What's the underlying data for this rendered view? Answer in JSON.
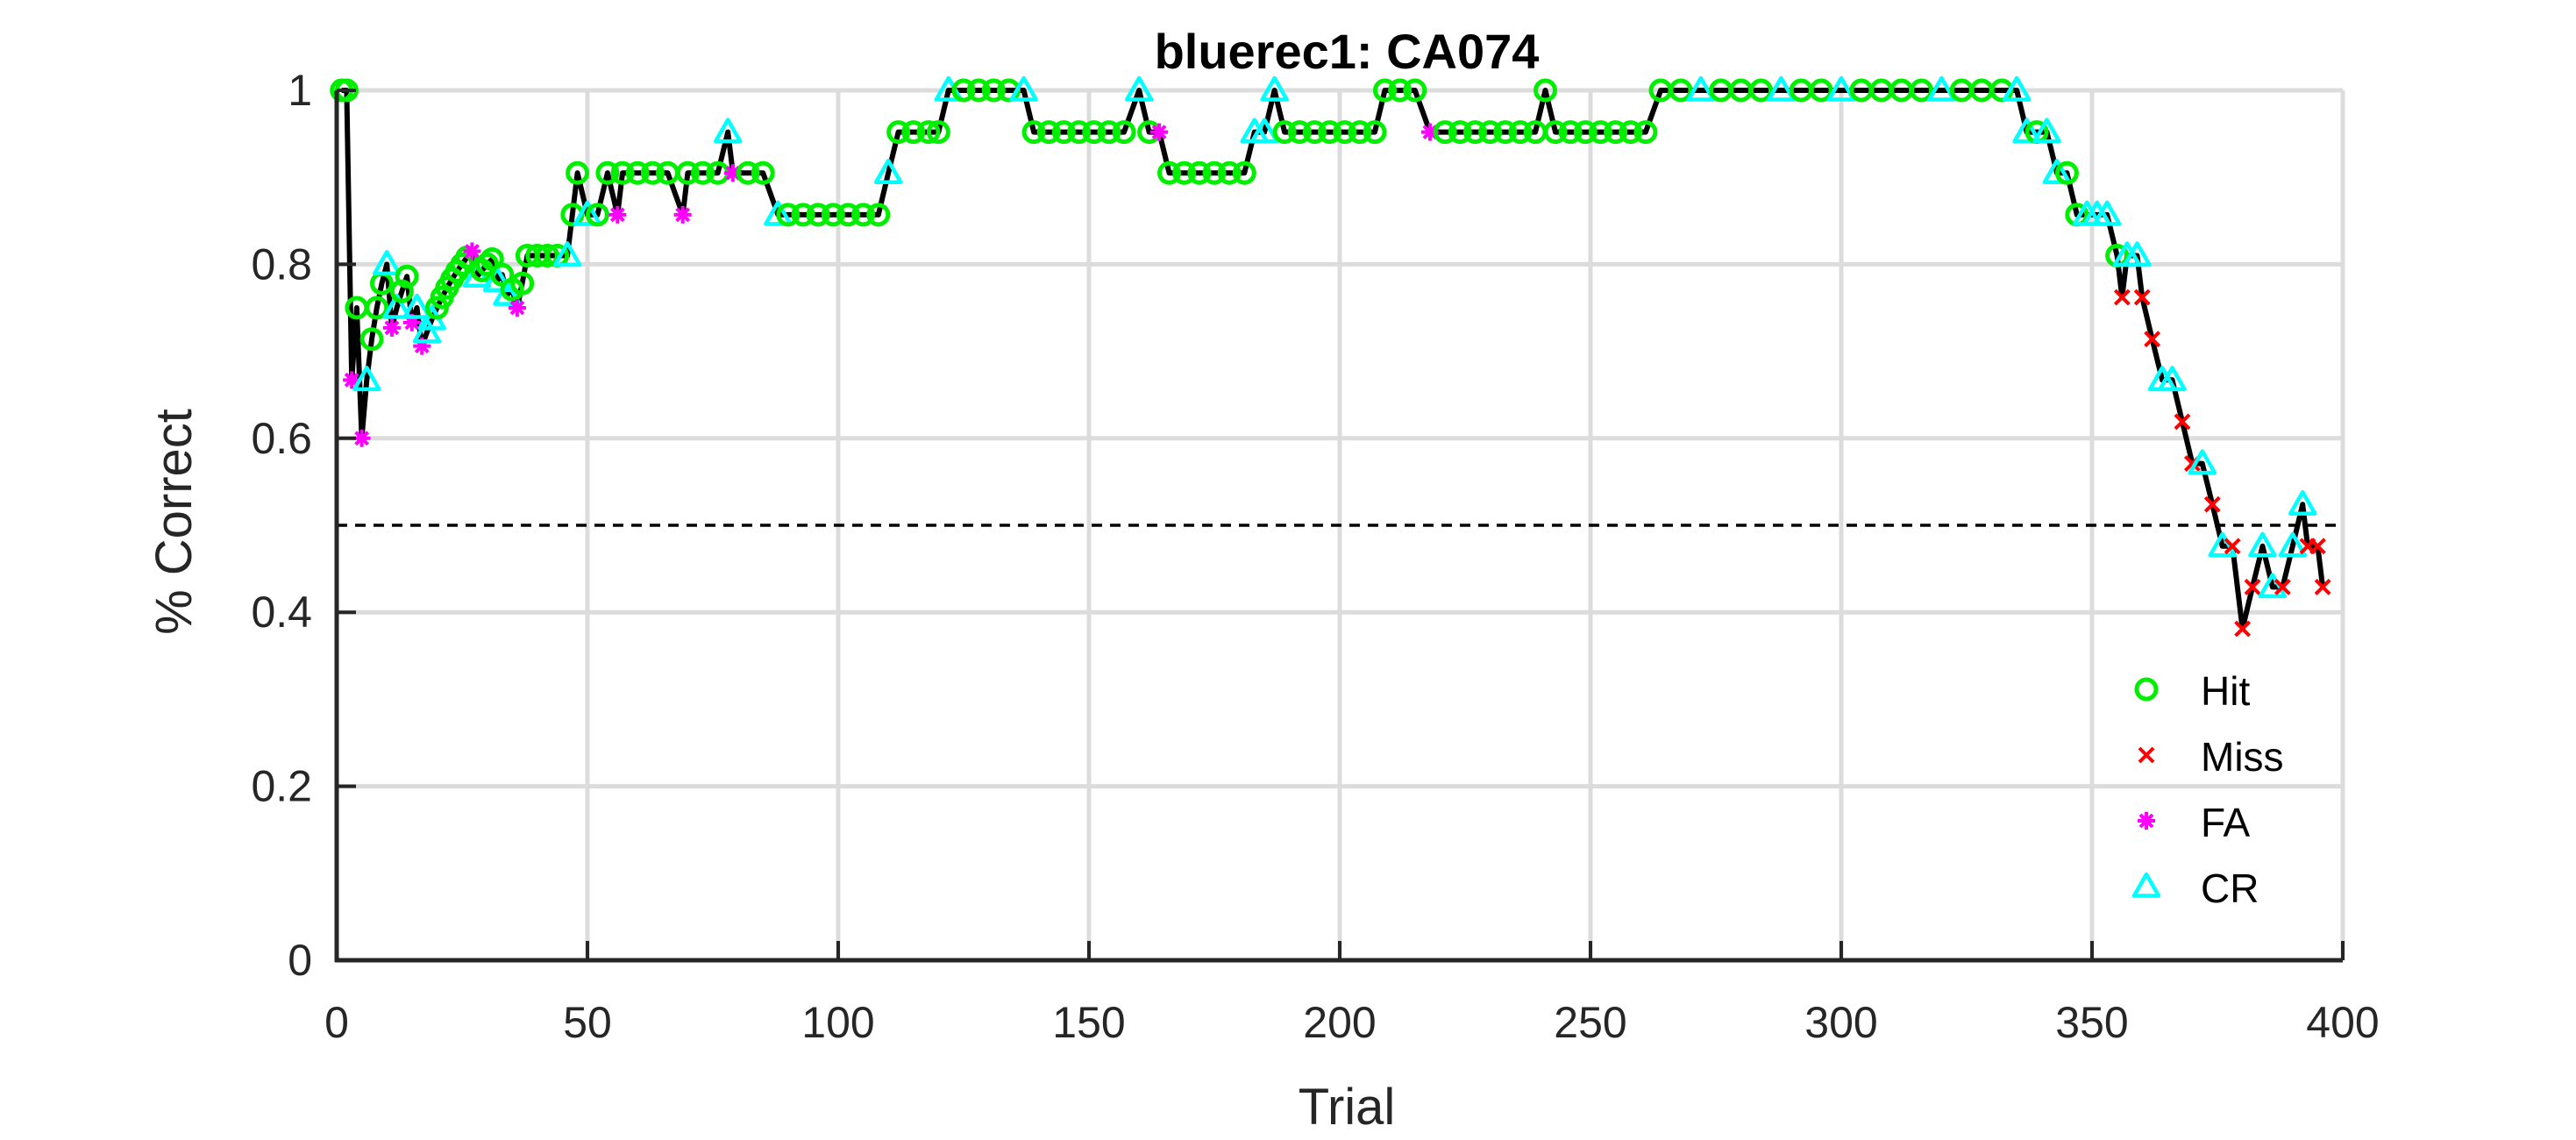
{
  "chart_data": {
    "type": "line",
    "title": "bluerec1: CA074",
    "xlabel": "Trial",
    "ylabel": "% Correct",
    "xlim": [
      0,
      400
    ],
    "ylim": [
      0,
      1
    ],
    "xticks": [
      0,
      50,
      100,
      150,
      200,
      250,
      300,
      350,
      400
    ],
    "xtick_labels": [
      "0",
      "50",
      "100",
      "150",
      "200",
      "250",
      "300",
      "350",
      "400"
    ],
    "yticks": [
      0,
      0.2,
      0.4,
      0.6,
      0.8,
      1
    ],
    "ytick_labels": [
      "0",
      "0.2",
      "0.4",
      "0.6",
      "0.8",
      "1"
    ],
    "grid": true,
    "legend_location": "bottom-right",
    "reference_line": {
      "y": 0.5,
      "style": "dashed"
    },
    "line_color": "#000000",
    "series": [
      {
        "name": "Hit",
        "marker": "circle",
        "color": "#00ee00"
      },
      {
        "name": "Miss",
        "marker": "x",
        "color": "#ff0000"
      },
      {
        "name": "FA",
        "marker": "asterisk",
        "color": "#ff00ff"
      },
      {
        "name": "CR",
        "marker": "triangle",
        "color": "#00ffff"
      }
    ],
    "trace": [
      [
        1,
        1.0,
        "H"
      ],
      [
        2,
        1.0,
        "H"
      ],
      [
        3,
        0.667,
        "F"
      ],
      [
        4,
        0.75,
        "H"
      ],
      [
        5,
        0.6,
        "F"
      ],
      [
        6,
        0.667,
        "C"
      ],
      [
        7,
        0.714,
        "H"
      ],
      [
        8,
        0.75,
        "H"
      ],
      [
        9,
        0.778,
        "H"
      ],
      [
        10,
        0.8,
        "C"
      ],
      [
        11,
        0.727,
        "F"
      ],
      [
        12,
        0.75,
        "C"
      ],
      [
        13,
        0.769,
        "H"
      ],
      [
        14,
        0.786,
        "H"
      ],
      [
        15,
        0.733,
        "F"
      ],
      [
        16,
        0.75,
        "C"
      ],
      [
        17,
        0.706,
        "F"
      ],
      [
        18,
        0.722,
        "C"
      ],
      [
        19,
        0.737,
        "C"
      ],
      [
        20,
        0.75,
        "H"
      ],
      [
        21,
        0.762,
        "H"
      ],
      [
        22,
        0.773,
        "H"
      ],
      [
        23,
        0.783,
        "H"
      ],
      [
        24,
        0.792,
        "H"
      ],
      [
        25,
        0.8,
        "H"
      ],
      [
        26,
        0.808,
        "H"
      ],
      [
        27,
        0.815,
        "F"
      ],
      [
        28,
        0.786,
        "C"
      ],
      [
        29,
        0.793,
        "H"
      ],
      [
        30,
        0.8,
        "H"
      ],
      [
        31,
        0.806,
        "H"
      ],
      [
        32,
        0.781,
        "C"
      ],
      [
        33,
        0.788,
        "H"
      ],
      [
        34,
        0.765,
        "C"
      ],
      [
        35,
        0.771,
        "H"
      ],
      [
        36,
        0.75,
        "F"
      ],
      [
        37,
        0.778,
        "H"
      ],
      [
        38,
        0.81,
        "H"
      ],
      [
        40,
        0.81,
        "H"
      ],
      [
        42,
        0.81,
        "H"
      ],
      [
        44,
        0.81,
        "H"
      ],
      [
        46,
        0.81,
        "C"
      ],
      [
        47,
        0.857,
        "H"
      ],
      [
        48,
        0.905,
        "H"
      ],
      [
        50,
        0.857,
        "C"
      ],
      [
        52,
        0.857,
        "H"
      ],
      [
        54,
        0.905,
        "H"
      ],
      [
        56,
        0.857,
        "F"
      ],
      [
        57,
        0.905,
        "H"
      ],
      [
        60,
        0.905,
        "H"
      ],
      [
        63,
        0.905,
        "H"
      ],
      [
        66,
        0.905,
        "H"
      ],
      [
        69,
        0.857,
        "F"
      ],
      [
        70,
        0.905,
        "H"
      ],
      [
        73,
        0.905,
        "H"
      ],
      [
        76,
        0.905,
        "H"
      ],
      [
        78,
        0.952,
        "C"
      ],
      [
        79,
        0.905,
        "F"
      ],
      [
        82,
        0.905,
        "H"
      ],
      [
        85,
        0.905,
        "H"
      ],
      [
        88,
        0.857,
        "C"
      ],
      [
        90,
        0.857,
        "H"
      ],
      [
        93,
        0.857,
        "H"
      ],
      [
        96,
        0.857,
        "H"
      ],
      [
        99,
        0.857,
        "H"
      ],
      [
        102,
        0.857,
        "H"
      ],
      [
        105,
        0.857,
        "H"
      ],
      [
        108,
        0.857,
        "H"
      ],
      [
        110,
        0.905,
        "C"
      ],
      [
        112,
        0.952,
        "H"
      ],
      [
        115,
        0.952,
        "H"
      ],
      [
        118,
        0.952,
        "H"
      ],
      [
        120,
        0.952,
        "H"
      ],
      [
        122,
        1.0,
        "C"
      ],
      [
        125,
        1.0,
        "H"
      ],
      [
        128,
        1.0,
        "H"
      ],
      [
        131,
        1.0,
        "H"
      ],
      [
        134,
        1.0,
        "H"
      ],
      [
        137,
        1.0,
        "C"
      ],
      [
        139,
        0.952,
        "H"
      ],
      [
        142,
        0.952,
        "H"
      ],
      [
        145,
        0.952,
        "H"
      ],
      [
        148,
        0.952,
        "H"
      ],
      [
        151,
        0.952,
        "H"
      ],
      [
        154,
        0.952,
        "H"
      ],
      [
        157,
        0.952,
        "H"
      ],
      [
        160,
        1.0,
        "C"
      ],
      [
        162,
        0.952,
        "H"
      ],
      [
        164,
        0.952,
        "F"
      ],
      [
        166,
        0.905,
        "H"
      ],
      [
        169,
        0.905,
        "H"
      ],
      [
        172,
        0.905,
        "H"
      ],
      [
        175,
        0.905,
        "H"
      ],
      [
        178,
        0.905,
        "H"
      ],
      [
        181,
        0.905,
        "H"
      ],
      [
        183,
        0.952,
        "C"
      ],
      [
        185,
        0.952,
        "C"
      ],
      [
        187,
        1.0,
        "C"
      ],
      [
        189,
        0.952,
        "H"
      ],
      [
        192,
        0.952,
        "H"
      ],
      [
        195,
        0.952,
        "H"
      ],
      [
        198,
        0.952,
        "H"
      ],
      [
        201,
        0.952,
        "H"
      ],
      [
        204,
        0.952,
        "H"
      ],
      [
        207,
        0.952,
        "H"
      ],
      [
        209,
        1.0,
        "H"
      ],
      [
        212,
        1.0,
        "H"
      ],
      [
        215,
        1.0,
        "H"
      ],
      [
        218,
        0.952,
        "F"
      ],
      [
        221,
        0.952,
        "H"
      ],
      [
        224,
        0.952,
        "H"
      ],
      [
        227,
        0.952,
        "H"
      ],
      [
        230,
        0.952,
        "H"
      ],
      [
        233,
        0.952,
        "H"
      ],
      [
        236,
        0.952,
        "H"
      ],
      [
        239,
        0.952,
        "H"
      ],
      [
        241,
        1.0,
        "H"
      ],
      [
        243,
        0.952,
        "H"
      ],
      [
        246,
        0.952,
        "H"
      ],
      [
        249,
        0.952,
        "H"
      ],
      [
        252,
        0.952,
        "H"
      ],
      [
        255,
        0.952,
        "H"
      ],
      [
        258,
        0.952,
        "H"
      ],
      [
        261,
        0.952,
        "H"
      ],
      [
        264,
        1.0,
        "H"
      ],
      [
        268,
        1.0,
        "H"
      ],
      [
        272,
        1.0,
        "C"
      ],
      [
        276,
        1.0,
        "H"
      ],
      [
        280,
        1.0,
        "H"
      ],
      [
        284,
        1.0,
        "H"
      ],
      [
        288,
        1.0,
        "C"
      ],
      [
        292,
        1.0,
        "H"
      ],
      [
        296,
        1.0,
        "H"
      ],
      [
        300,
        1.0,
        "C"
      ],
      [
        304,
        1.0,
        "H"
      ],
      [
        308,
        1.0,
        "H"
      ],
      [
        312,
        1.0,
        "H"
      ],
      [
        316,
        1.0,
        "H"
      ],
      [
        320,
        1.0,
        "C"
      ],
      [
        324,
        1.0,
        "H"
      ],
      [
        328,
        1.0,
        "H"
      ],
      [
        332,
        1.0,
        "H"
      ],
      [
        335,
        1.0,
        "C"
      ],
      [
        337,
        0.952,
        "C"
      ],
      [
        339,
        0.952,
        "H"
      ],
      [
        341,
        0.952,
        "C"
      ],
      [
        343,
        0.905,
        "C"
      ],
      [
        345,
        0.905,
        "H"
      ],
      [
        347,
        0.857,
        "H"
      ],
      [
        349,
        0.857,
        "C"
      ],
      [
        351,
        0.857,
        "C"
      ],
      [
        353,
        0.857,
        "C"
      ],
      [
        355,
        0.81,
        "H"
      ],
      [
        356,
        0.762,
        "M"
      ],
      [
        357,
        0.81,
        "C"
      ],
      [
        359,
        0.81,
        "C"
      ],
      [
        360,
        0.762,
        "M"
      ],
      [
        362,
        0.714,
        "M"
      ],
      [
        364,
        0.667,
        "C"
      ],
      [
        366,
        0.667,
        "C"
      ],
      [
        368,
        0.619,
        "M"
      ],
      [
        370,
        0.571,
        "M"
      ],
      [
        372,
        0.571,
        "C"
      ],
      [
        374,
        0.524,
        "M"
      ],
      [
        376,
        0.476,
        "C"
      ],
      [
        378,
        0.476,
        "M"
      ],
      [
        380,
        0.381,
        "M"
      ],
      [
        382,
        0.429,
        "M"
      ],
      [
        384,
        0.476,
        "C"
      ],
      [
        386,
        0.429,
        "C"
      ],
      [
        388,
        0.429,
        "M"
      ],
      [
        390,
        0.476,
        "C"
      ],
      [
        392,
        0.524,
        "C"
      ],
      [
        393,
        0.476,
        "M"
      ],
      [
        395,
        0.476,
        "M"
      ],
      [
        396,
        0.429,
        "M"
      ]
    ]
  }
}
